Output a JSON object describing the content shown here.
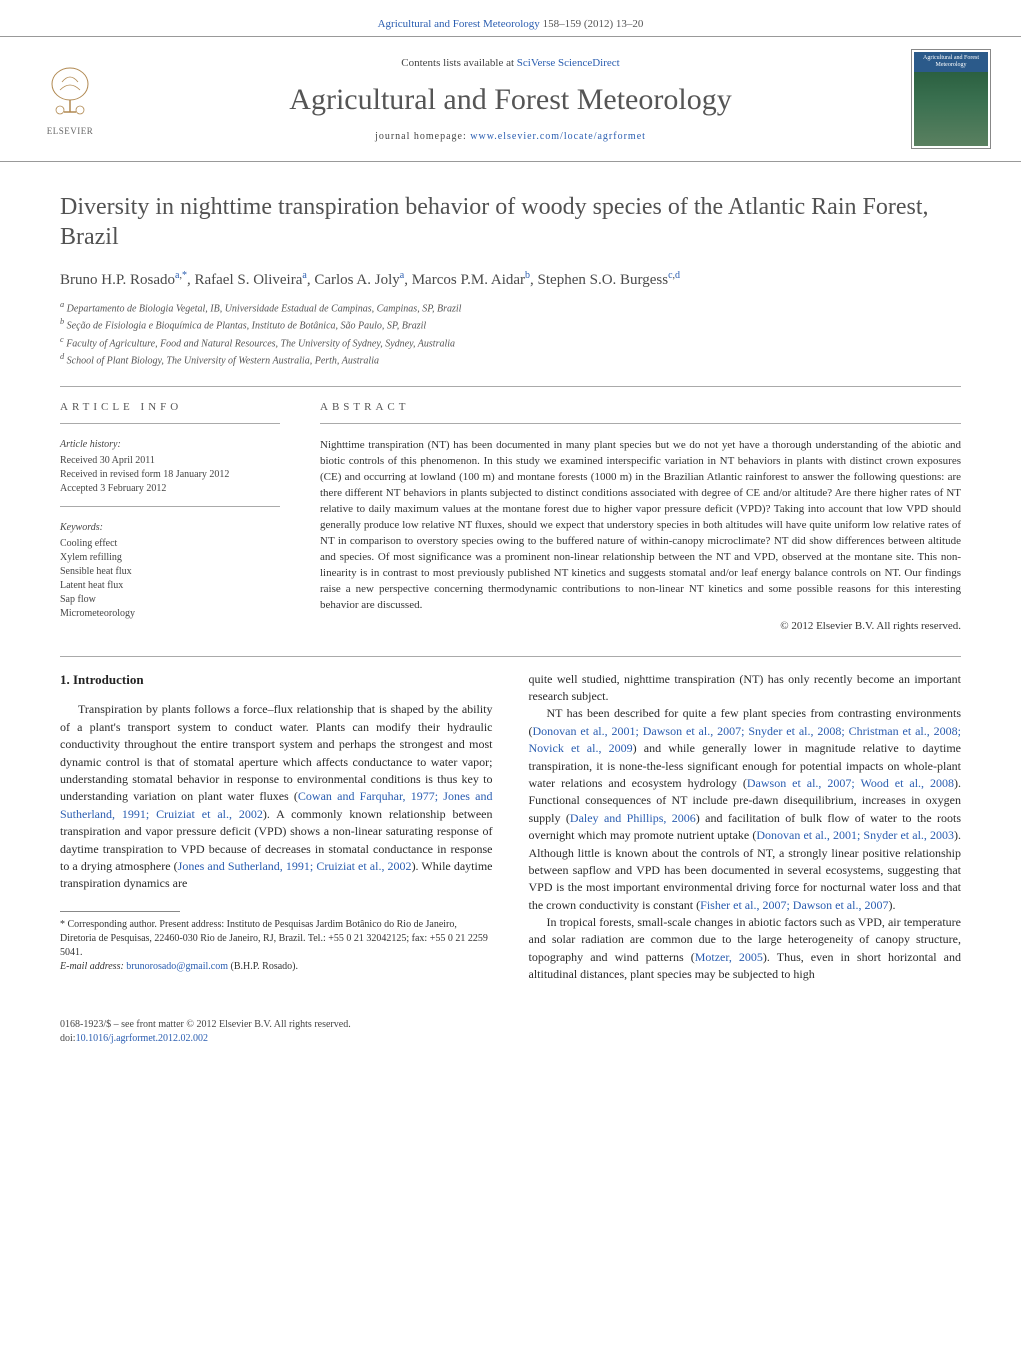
{
  "colors": {
    "link": "#2a5db0",
    "text": "#2a2a2a",
    "muted": "#555",
    "rule": "#999",
    "cover_top": "#2b5a8a"
  },
  "page_header": {
    "journal_ref_prefix": "Agricultural and Forest Meteorology",
    "journal_ref_suffix": " 158–159 (2012) 13–20"
  },
  "banner": {
    "contents_prefix": "Contents lists available at ",
    "contents_link": "SciVerse ScienceDirect",
    "journal_name": "Agricultural and Forest Meteorology",
    "homepage_prefix": "journal homepage: ",
    "homepage_link": "www.elsevier.com/locate/agrformet",
    "elsevier_label": "ELSEVIER",
    "cover_text": "Agricultural and Forest Meteorology"
  },
  "article": {
    "title": "Diversity in nighttime transpiration behavior of woody species of the Atlantic Rain Forest, Brazil",
    "authors_html": [
      {
        "name": "Bruno H.P. Rosado",
        "sup": "a,",
        "star": true
      },
      {
        "name": "Rafael S. Oliveira",
        "sup": "a"
      },
      {
        "name": "Carlos A. Joly",
        "sup": "a"
      },
      {
        "name": "Marcos P.M. Aidar",
        "sup": "b"
      },
      {
        "name": "Stephen S.O. Burgess",
        "sup": "c,d"
      }
    ],
    "affiliations": [
      "a Departamento de Biologia Vegetal, IB, Universidade Estadual de Campinas, Campinas, SP, Brazil",
      "b Seção de Fisiologia e Bioquímica de Plantas, Instituto de Botânica, São Paulo, SP, Brazil",
      "c Faculty of Agriculture, Food and Natural Resources, The University of Sydney, Sydney, Australia",
      "d School of Plant Biology, The University of Western Australia, Perth, Australia"
    ],
    "info_heading": "ARTICLE INFO",
    "abstract_heading": "ABSTRACT",
    "history_label": "Article history:",
    "history": [
      "Received 30 April 2011",
      "Received in revised form 18 January 2012",
      "Accepted 3 February 2012"
    ],
    "keywords_label": "Keywords:",
    "keywords": [
      "Cooling effect",
      "Xylem refilling",
      "Sensible heat flux",
      "Latent heat flux",
      "Sap flow",
      "Micrometeorology"
    ],
    "abstract": "Nighttime transpiration (NT) has been documented in many plant species but we do not yet have a thorough understanding of the abiotic and biotic controls of this phenomenon. In this study we examined interspecific variation in NT behaviors in plants with distinct crown exposures (CE) and occurring at lowland (100 m) and montane forests (1000 m) in the Brazilian Atlantic rainforest to answer the following questions: are there different NT behaviors in plants subjected to distinct conditions associated with degree of CE and/or altitude? Are there higher rates of NT relative to daily maximum values at the montane forest due to higher vapor pressure deficit (VPD)? Taking into account that low VPD should generally produce low relative NT fluxes, should we expect that understory species in both altitudes will have quite uniform low relative rates of NT in comparison to overstory species owing to the buffered nature of within-canopy microclimate? NT did show differences between altitude and species. Of most significance was a prominent non-linear relationship between the NT and VPD, observed at the montane site. This non-linearity is in contrast to most previously published NT kinetics and suggests stomatal and/or leaf energy balance controls on NT. Our findings raise a new perspective concerning thermodynamic contributions to non-linear NT kinetics and some possible reasons for this interesting behavior are discussed.",
    "copyright": "© 2012 Elsevier B.V. All rights reserved."
  },
  "body": {
    "section_heading": "1.  Introduction",
    "p1a": "Transpiration by plants follows a force–flux relationship that is shaped by the ability of a plant's transport system to conduct water. Plants can modify their hydraulic conductivity throughout the entire transport system and perhaps the strongest and most dynamic control is that of stomatal aperture which affects conductance to water vapor; understanding stomatal behavior in response to environmental conditions is thus key to understanding variation on plant water fluxes (",
    "p1_link1": "Cowan and Farquhar, 1977; Jones and Sutherland, 1991; Cruiziat et al., 2002",
    "p1b": "). A commonly known relationship between transpiration and vapor pressure deficit (VPD) shows a non-linear saturating response of daytime transpiration to VPD because of decreases in stomatal conductance in response to a drying atmosphere (",
    "p1_link2": "Jones and Sutherland, 1991; Cruiziat et al., 2002",
    "p1c": "). While daytime transpiration dynamics are ",
    "p1_tail": "quite well studied, nighttime transpiration (NT) has only recently become an important research subject.",
    "p2a": "NT has been described for quite a few plant species from contrasting environments (",
    "p2_link1": "Donovan et al., 2001; Dawson et al., 2007; Snyder et al., 2008; Christman et al., 2008; Novick et al., 2009",
    "p2b": ") and while generally lower in magnitude relative to daytime transpiration, it is none-the-less significant enough for potential impacts on whole-plant water relations and ecosystem hydrology (",
    "p2_link2": "Dawson et al., 2007; Wood et al., 2008",
    "p2c": "). Functional consequences of NT include pre-dawn disequilibrium, increases in oxygen supply (",
    "p2_link3": "Daley and Phillips, 2006",
    "p2d": ") and facilitation of bulk flow of water to the roots overnight which may promote nutrient uptake (",
    "p2_link4": "Donovan et al., 2001; Snyder et al., 2003",
    "p2e": "). Although little is known about the controls of NT, a strongly linear positive relationship between sapflow and VPD has been documented in several ecosystems, suggesting that VPD is the most important environmental driving force for nocturnal water loss and that the crown conductivity is constant (",
    "p2_link5": "Fisher et al., 2007; Dawson et al., 2007",
    "p2f": ").",
    "p3a": "In tropical forests, small-scale changes in abiotic factors such as VPD, air temperature and solar radiation are common due to the large heterogeneity of canopy structure, topography and wind patterns (",
    "p3_link1": "Motzer, 2005",
    "p3b": "). Thus, even in short horizontal and altitudinal distances, plant species may be subjected to high"
  },
  "footnote": {
    "corr_label": "* Corresponding author. Present address: Instituto de Pesquisas Jardim Botânico do Rio de Janeiro, Diretoria de Pesquisas, 22460-030 Rio de Janeiro, RJ, Brazil. Tel.: +55 0 21 32042125; fax: +55 0 21 2259 5041.",
    "email_label": "E-mail address: ",
    "email": "brunorosado@gmail.com",
    "email_tail": " (B.H.P. Rosado)."
  },
  "footer": {
    "line1": "0168-1923/$ – see front matter © 2012 Elsevier B.V. All rights reserved.",
    "doi_prefix": "doi:",
    "doi": "10.1016/j.agrformet.2012.02.002"
  }
}
